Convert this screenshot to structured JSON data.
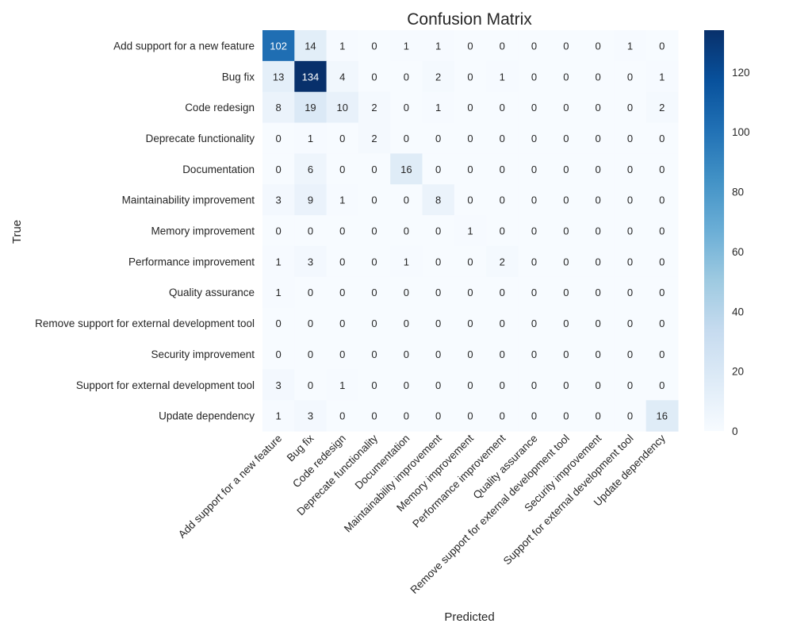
{
  "chart_data": {
    "type": "heatmap",
    "title": "Confusion Matrix",
    "xlabel": "Predicted",
    "ylabel": "True",
    "labels": [
      "Add support for a new feature",
      "Bug fix",
      "Code redesign",
      "Deprecate functionality",
      "Documentation",
      "Maintainability improvement",
      "Memory improvement",
      "Performance improvement",
      "Quality assurance",
      "Remove support for external development tool",
      "Security improvement",
      "Support for external development tool",
      "Update dependency"
    ],
    "matrix": [
      [
        102,
        14,
        1,
        0,
        1,
        1,
        0,
        0,
        0,
        0,
        0,
        1,
        0
      ],
      [
        13,
        134,
        4,
        0,
        0,
        2,
        0,
        1,
        0,
        0,
        0,
        0,
        1
      ],
      [
        8,
        19,
        10,
        2,
        0,
        1,
        0,
        0,
        0,
        0,
        0,
        0,
        2
      ],
      [
        0,
        1,
        0,
        2,
        0,
        0,
        0,
        0,
        0,
        0,
        0,
        0,
        0
      ],
      [
        0,
        6,
        0,
        0,
        16,
        0,
        0,
        0,
        0,
        0,
        0,
        0,
        0
      ],
      [
        3,
        9,
        1,
        0,
        0,
        8,
        0,
        0,
        0,
        0,
        0,
        0,
        0
      ],
      [
        0,
        0,
        0,
        0,
        0,
        0,
        1,
        0,
        0,
        0,
        0,
        0,
        0
      ],
      [
        1,
        3,
        0,
        0,
        1,
        0,
        0,
        2,
        0,
        0,
        0,
        0,
        0
      ],
      [
        1,
        0,
        0,
        0,
        0,
        0,
        0,
        0,
        0,
        0,
        0,
        0,
        0
      ],
      [
        0,
        0,
        0,
        0,
        0,
        0,
        0,
        0,
        0,
        0,
        0,
        0,
        0
      ],
      [
        0,
        0,
        0,
        0,
        0,
        0,
        0,
        0,
        0,
        0,
        0,
        0,
        0
      ],
      [
        3,
        0,
        1,
        0,
        0,
        0,
        0,
        0,
        0,
        0,
        0,
        0,
        0
      ],
      [
        1,
        3,
        0,
        0,
        0,
        0,
        0,
        0,
        0,
        0,
        0,
        0,
        16
      ]
    ],
    "colorscale": "Blues",
    "colorbar": {
      "range": [
        0,
        134
      ],
      "ticks": [
        0,
        20,
        40,
        60,
        80,
        100,
        120
      ]
    },
    "grid": false
  }
}
